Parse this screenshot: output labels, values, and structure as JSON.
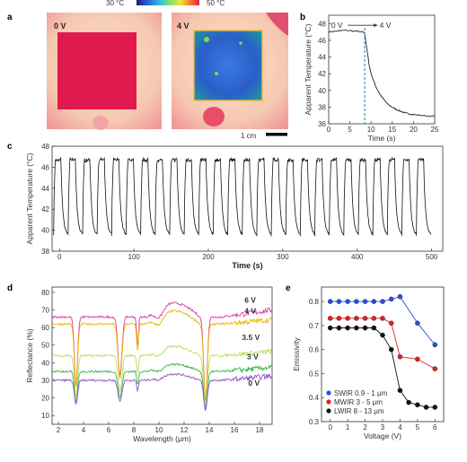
{
  "colorbar": {
    "low_label": "30 °C",
    "high_label": "50 °C"
  },
  "panel_a": {
    "letter": "a",
    "images": [
      {
        "label": "0 V",
        "plate_color": "#e01a4f"
      },
      {
        "label": "4 V",
        "plate_color": "#2a62c6"
      }
    ],
    "scale_bar_label": "1 cm"
  },
  "panel_b": {
    "letter": "b",
    "annotation_start": "0 V",
    "annotation_end": "4 V",
    "switch_time": 8.5
  },
  "panel_c": {
    "letter": "c",
    "cycles": 26,
    "period_s": 19.5
  },
  "panel_d": {
    "letter": "d"
  },
  "panel_e": {
    "letter": "e"
  },
  "chart_data": [
    {
      "id": "b",
      "type": "line",
      "title": "",
      "xlabel": "Time (s)",
      "ylabel": "Apparent Temperature (°C)",
      "xlim": [
        0,
        25
      ],
      "ylim": [
        36,
        49
      ],
      "xticks": [
        0,
        5,
        10,
        15,
        20,
        25
      ],
      "yticks": [
        36,
        38,
        40,
        42,
        44,
        46,
        48
      ],
      "series": [
        {
          "color": "#222222",
          "x": [
            0,
            2,
            4,
            6,
            8,
            8.5,
            9,
            9.5,
            10,
            11,
            12,
            13,
            14,
            15,
            16,
            17,
            18,
            19,
            20,
            22,
            25
          ],
          "y": [
            47.0,
            47.1,
            47.2,
            47.1,
            47.0,
            46.8,
            45.0,
            43.2,
            42.0,
            40.6,
            39.6,
            38.9,
            38.3,
            38.0,
            37.7,
            37.5,
            37.3,
            37.2,
            37.1,
            37.0,
            36.9
          ]
        }
      ]
    },
    {
      "id": "c",
      "type": "line",
      "title": "",
      "xlabel": "Time (s)",
      "ylabel": "Apparent Temperature (°C)",
      "xlim": [
        -10,
        515
      ],
      "ylim": [
        38,
        48
      ],
      "xticks": [
        0,
        100,
        200,
        300,
        400,
        500
      ],
      "yticks": [
        38,
        40,
        42,
        44,
        46,
        48
      ],
      "high": 46.8,
      "low": 39.5
    },
    {
      "id": "d",
      "type": "line",
      "title": "",
      "xlabel": "Wavelength (μm)",
      "ylabel": "Reflectance (%)",
      "xlim": [
        1.5,
        19
      ],
      "ylim": [
        5,
        83
      ],
      "xticks": [
        2,
        4,
        6,
        8,
        10,
        12,
        14,
        16,
        18
      ],
      "yticks": [
        10,
        20,
        30,
        40,
        50,
        60,
        70,
        80
      ],
      "series": [
        {
          "name": "6 V",
          "color": "#d63aa0",
          "base": 66,
          "label_x": 16.8,
          "label_y": 74
        },
        {
          "name": "4 V",
          "color": "#f0b400",
          "base": 62,
          "label_x": 16.8,
          "label_y": 68
        },
        {
          "name": "3.5 V",
          "color": "#b8dc5a",
          "base": 44,
          "label_x": 16.6,
          "label_y": 53
        },
        {
          "name": "3 V",
          "color": "#3cb54a",
          "base": 35,
          "label_x": 17.0,
          "label_y": 42
        },
        {
          "name": "0 V",
          "color": "#8a55c8",
          "base": 30,
          "label_x": 17.1,
          "label_y": 27
        }
      ]
    },
    {
      "id": "e",
      "type": "line",
      "title": "",
      "xlabel": "Voltage (V)",
      "ylabel": "Emissivity",
      "xlim": [
        -0.5,
        6.5
      ],
      "ylim": [
        0.3,
        0.86
      ],
      "xticks": [
        0,
        1,
        2,
        3,
        4,
        5,
        6
      ],
      "yticks": [
        0.3,
        0.4,
        0.5,
        0.6,
        0.7,
        0.8
      ],
      "legend_position": "bottom-left",
      "series": [
        {
          "name": "SWIR  0.9 - 1  μm",
          "color": "#2a4fe0",
          "x": [
            0,
            0.5,
            1,
            1.5,
            2,
            2.5,
            3,
            3.5,
            4,
            5,
            6
          ],
          "y": [
            0.8,
            0.8,
            0.8,
            0.8,
            0.8,
            0.8,
            0.8,
            0.81,
            0.82,
            0.71,
            0.62
          ]
        },
        {
          "name": "MWIR  3 - 5  μm",
          "color": "#e02020",
          "x": [
            0,
            0.5,
            1,
            1.5,
            2,
            2.5,
            3,
            3.5,
            4,
            5,
            6
          ],
          "y": [
            0.73,
            0.73,
            0.73,
            0.73,
            0.73,
            0.73,
            0.73,
            0.71,
            0.57,
            0.56,
            0.52
          ]
        },
        {
          "name": "LWIR  8 - 13  μm",
          "color": "#111111",
          "x": [
            0,
            0.5,
            1,
            1.5,
            2,
            2.5,
            3,
            3.5,
            4,
            4.5,
            5,
            5.5,
            6
          ],
          "y": [
            0.69,
            0.69,
            0.69,
            0.69,
            0.69,
            0.69,
            0.66,
            0.6,
            0.43,
            0.38,
            0.37,
            0.36,
            0.36
          ]
        }
      ]
    }
  ]
}
